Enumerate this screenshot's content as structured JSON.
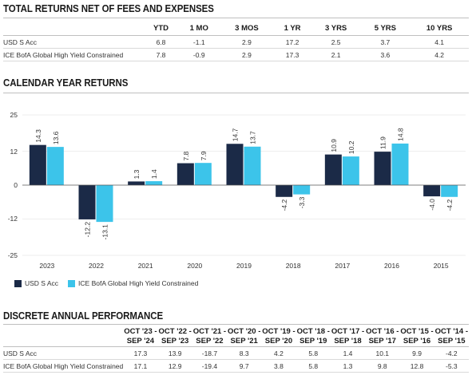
{
  "sections": {
    "total_returns_title": "TOTAL RETURNS NET OF FEES AND EXPENSES",
    "calendar_title": "CALENDAR YEAR RETURNS",
    "discrete_title": "DISCRETE ANNUAL PERFORMANCE"
  },
  "total_returns": {
    "headers": [
      "YTD",
      "1 MO",
      "3 MOS",
      "1 YR",
      "3 YRS",
      "5 YRS",
      "10 YRS"
    ],
    "rows": [
      {
        "name": "USD S Acc",
        "values": [
          "6.8",
          "-1.1",
          "2.9",
          "17.2",
          "2.5",
          "3.7",
          "4.1"
        ]
      },
      {
        "name": "ICE BofA Global High Yield Constrained",
        "values": [
          "7.8",
          "-0.9",
          "2.9",
          "17.3",
          "2.1",
          "3.6",
          "4.2"
        ]
      }
    ]
  },
  "colors": {
    "fund": "#1b2a47",
    "benchmark": "#3cc4ea",
    "zero_line": "#555555",
    "grid": "#dddddd"
  },
  "chart_data": {
    "type": "bar",
    "categories": [
      "2023",
      "2022",
      "2021",
      "2020",
      "2019",
      "2018",
      "2017",
      "2016",
      "2015"
    ],
    "series": [
      {
        "name": "USD S Acc",
        "values": [
          14.3,
          -12.2,
          1.3,
          7.8,
          14.7,
          -4.2,
          10.9,
          11.9,
          -4.0
        ]
      },
      {
        "name": "ICE BofA Global High Yield Constrained",
        "values": [
          13.6,
          -13.1,
          1.4,
          7.9,
          13.7,
          -3.3,
          10.2,
          14.8,
          -4.2
        ]
      }
    ],
    "yticks": [
      "25",
      "12",
      "0",
      "-12",
      "-25"
    ],
    "ylim": [
      -25,
      25
    ],
    "legend_position": "bottom-left"
  },
  "discrete": {
    "headers": [
      [
        "OCT '23 -",
        "SEP '24"
      ],
      [
        "OCT '22 -",
        "SEP '23"
      ],
      [
        "OCT '21 -",
        "SEP '22"
      ],
      [
        "OCT '20 -",
        "SEP '21"
      ],
      [
        "OCT '19 -",
        "SEP '20"
      ],
      [
        "OCT '18 -",
        "SEP '19"
      ],
      [
        "OCT '17 -",
        "SEP '18"
      ],
      [
        "OCT '16 -",
        "SEP '17"
      ],
      [
        "OCT '15 -",
        "SEP '16"
      ],
      [
        "OCT '14 -",
        "SEP '15"
      ]
    ],
    "rows": [
      {
        "name": "USD S Acc",
        "values": [
          "17.3",
          "13.9",
          "-18.7",
          "8.3",
          "4.2",
          "5.8",
          "1.4",
          "10.1",
          "9.9",
          "-4.2"
        ]
      },
      {
        "name": "ICE BofA Global High Yield Constrained",
        "values": [
          "17.1",
          "12.9",
          "-19.4",
          "9.7",
          "3.8",
          "5.8",
          "1.3",
          "9.8",
          "12.8",
          "-5.3"
        ]
      }
    ]
  }
}
